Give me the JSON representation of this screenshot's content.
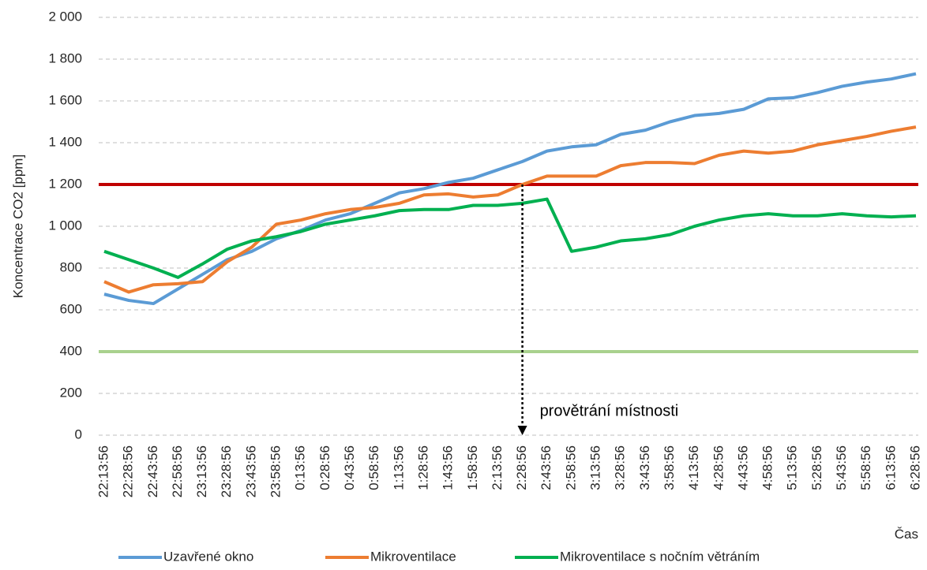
{
  "chart_data": {
    "type": "line",
    "y_label": "Koncentrace CO2 [ppm]",
    "x_label": "Čas",
    "categories": [
      "22:13:56",
      "22:28:56",
      "22:43:56",
      "22:58:56",
      "23:13:56",
      "23:28:56",
      "23:43:56",
      "23:58:56",
      "0:13:56",
      "0:28:56",
      "0:43:56",
      "0:58:56",
      "1:13:56",
      "1:28:56",
      "1:43:56",
      "1:58:56",
      "2:13:56",
      "2:28:56",
      "2:43:56",
      "2:58:56",
      "3:13:56",
      "3:28:56",
      "3:43:56",
      "3:58:56",
      "4:13:56",
      "4:28:56",
      "4:43:56",
      "4:58:56",
      "5:13:56",
      "5:28:56",
      "5:43:56",
      "5:58:56",
      "6:13:56",
      "6:28:56"
    ],
    "series": [
      {
        "name": "Uzavřené okno",
        "color": "#5b9bd5",
        "values": [
          675,
          645,
          630,
          700,
          770,
          840,
          880,
          940,
          980,
          1030,
          1060,
          1110,
          1160,
          1180,
          1210,
          1230,
          1270,
          1310,
          1360,
          1380,
          1390,
          1440,
          1460,
          1500,
          1530,
          1540,
          1560,
          1610,
          1615,
          1640,
          1670,
          1690,
          1705,
          1730
        ]
      },
      {
        "name": "Mikroventilace",
        "color": "#ed7d31",
        "values": [
          735,
          685,
          720,
          725,
          735,
          830,
          900,
          1010,
          1030,
          1060,
          1080,
          1090,
          1110,
          1150,
          1155,
          1140,
          1150,
          1200,
          1240,
          1240,
          1240,
          1290,
          1305,
          1305,
          1300,
          1340,
          1360,
          1350,
          1360,
          1390,
          1410,
          1430,
          1455,
          1475
        ]
      },
      {
        "name": "Mikroventilace s nočním větráním",
        "color": "#00b050",
        "values": [
          880,
          840,
          800,
          755,
          820,
          890,
          930,
          950,
          975,
          1010,
          1030,
          1050,
          1075,
          1080,
          1080,
          1100,
          1100,
          1110,
          1130,
          880,
          900,
          930,
          940,
          960,
          1000,
          1030,
          1050,
          1060,
          1050,
          1050,
          1060,
          1050,
          1045,
          1050
        ]
      }
    ],
    "reference_lines": [
      {
        "value": 1200,
        "color": "#c00000"
      },
      {
        "value": 400,
        "color": "#a9d18e"
      }
    ],
    "annotation": {
      "text": "provětrání místnosti",
      "x": "2:28:56",
      "from": 1200,
      "to": 0
    },
    "ylim": [
      0,
      2000
    ],
    "yticks": [
      0,
      200,
      400,
      600,
      800,
      {
        "value": 1000,
        "label": "1 000"
      },
      {
        "value": 1200,
        "label": "1 200"
      },
      {
        "value": 1400,
        "label": "1 400"
      },
      {
        "value": 1600,
        "label": "1 600"
      },
      {
        "value": 1800,
        "label": "1 800"
      },
      {
        "value": 2000,
        "label": "2 000"
      }
    ],
    "grid": true,
    "legend": "bottom"
  }
}
